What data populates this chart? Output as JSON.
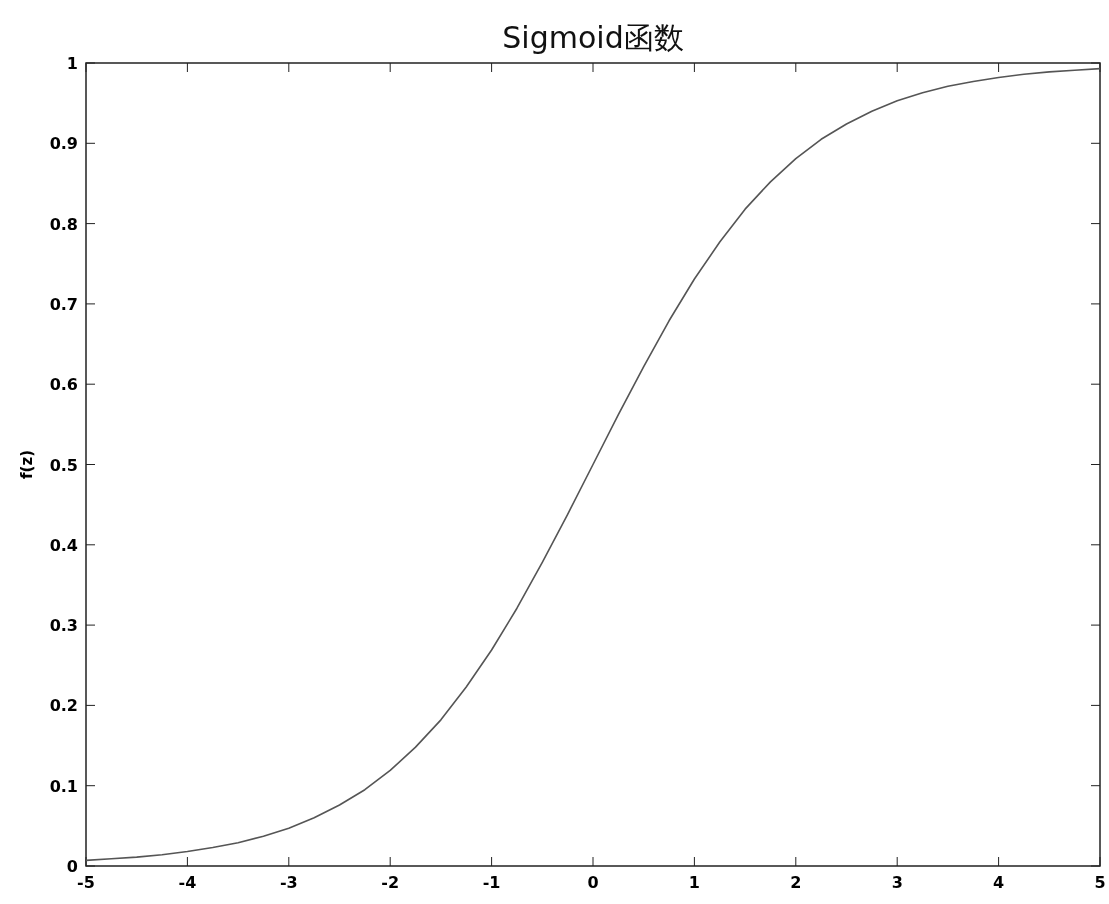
{
  "chart_data": {
    "type": "line",
    "title": "Sigmoid函数",
    "ylabel": "f(z)",
    "x": [
      -5,
      -4.75,
      -4.5,
      -4.25,
      -4,
      -3.75,
      -3.5,
      -3.25,
      -3,
      -2.75,
      -2.5,
      -2.25,
      -2,
      -1.75,
      -1.5,
      -1.25,
      -1,
      -0.75,
      -0.5,
      -0.25,
      0,
      0.25,
      0.5,
      0.75,
      1,
      1.25,
      1.5,
      1.75,
      2,
      2.25,
      2.5,
      2.75,
      3,
      3.25,
      3.5,
      3.75,
      4,
      4.25,
      4.5,
      4.75,
      5
    ],
    "series": [
      {
        "color": "#555555",
        "values": [
          0.007,
          0.009,
          0.011,
          0.014,
          0.018,
          0.023,
          0.029,
          0.037,
          0.047,
          0.06,
          0.076,
          0.095,
          0.119,
          0.148,
          0.182,
          0.223,
          0.269,
          0.321,
          0.378,
          0.438,
          0.5,
          0.562,
          0.622,
          0.679,
          0.731,
          0.777,
          0.818,
          0.852,
          0.881,
          0.905,
          0.924,
          0.94,
          0.953,
          0.963,
          0.971,
          0.977,
          0.982,
          0.986,
          0.989,
          0.991,
          0.993
        ]
      }
    ],
    "xlim": [
      -5,
      5
    ],
    "ylim": [
      0,
      1
    ],
    "xticks": [
      -5,
      -4,
      -3,
      -2,
      -1,
      0,
      1,
      2,
      3,
      4,
      5
    ],
    "yticks": [
      0,
      0.1,
      0.2,
      0.3,
      0.4,
      0.5,
      0.6,
      0.7,
      0.8,
      0.9,
      1
    ],
    "grid": false,
    "line_style": "solid",
    "marker": "none"
  }
}
